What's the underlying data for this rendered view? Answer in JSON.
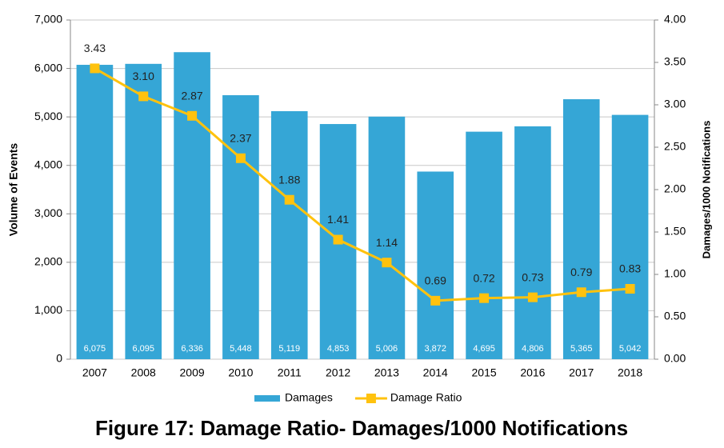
{
  "chart_data": {
    "type": "bar-line",
    "title": "Figure 17: Damage Ratio- Damages/1000 Notifications",
    "y_label": "Volume of Events",
    "y2_label": "Damages/1000 Notifications",
    "categories": [
      "2007",
      "2008",
      "2009",
      "2010",
      "2011",
      "2012",
      "2013",
      "2014",
      "2015",
      "2016",
      "2017",
      "2018"
    ],
    "series": [
      {
        "name": "Damages",
        "type": "bar",
        "color": "#35a6d6",
        "values": [
          6075,
          6095,
          6336,
          5448,
          5119,
          4853,
          5006,
          3872,
          4695,
          4806,
          5365,
          5042
        ],
        "value_labels": [
          "6,075",
          "6,095",
          "6,336",
          "5,448",
          "5,119",
          "4,853",
          "5,006",
          "3,872",
          "4,695",
          "4,806",
          "5,365",
          "5,042"
        ]
      },
      {
        "name": "Damage Ratio",
        "type": "line",
        "axis": "y2",
        "color": "#ffc20e",
        "values": [
          3.43,
          3.1,
          2.87,
          2.37,
          1.88,
          1.41,
          1.14,
          0.69,
          0.72,
          0.73,
          0.79,
          0.83
        ],
        "value_labels": [
          "3.43",
          "3.10",
          "2.87",
          "2.37",
          "1.88",
          "1.41",
          "1.14",
          "0.69",
          "0.72",
          "0.73",
          "0.79",
          "0.83"
        ]
      }
    ],
    "ylim": [
      0,
      7000
    ],
    "yticks": [
      {
        "value": 0,
        "label": "0"
      },
      {
        "value": 1000,
        "label": "1,000"
      },
      {
        "value": 2000,
        "label": "2,000"
      },
      {
        "value": 3000,
        "label": "3,000"
      },
      {
        "value": 4000,
        "label": "4,000"
      },
      {
        "value": 5000,
        "label": "5,000"
      },
      {
        "value": 6000,
        "label": "6,000"
      },
      {
        "value": 7000,
        "label": "7,000"
      }
    ],
    "y2lim": [
      0,
      4
    ],
    "y2ticks": [
      {
        "value": 0,
        "label": "0.00"
      },
      {
        "value": 0.5,
        "label": "0.50"
      },
      {
        "value": 1,
        "label": "1.00"
      },
      {
        "value": 1.5,
        "label": "1.50"
      },
      {
        "value": 2,
        "label": "2.00"
      },
      {
        "value": 2.5,
        "label": "2.50"
      },
      {
        "value": 3,
        "label": "3.00"
      },
      {
        "value": 3.5,
        "label": "3.50"
      },
      {
        "value": 4,
        "label": "4.00"
      }
    ],
    "grid": true,
    "legend": "bottom"
  }
}
